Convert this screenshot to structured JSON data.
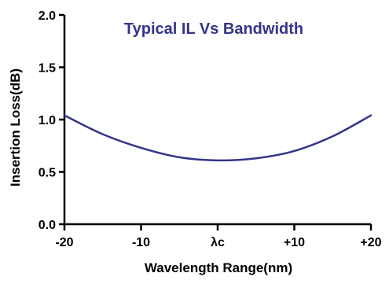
{
  "chart_data": {
    "type": "line",
    "title": "Typical IL Vs Bandwidth",
    "xlabel": "Wavelength Range(nm)",
    "ylabel": "Insertion Loss(dB)",
    "xlim": [
      -20,
      20
    ],
    "ylim": [
      0,
      2.0
    ],
    "x_ticks": [
      {
        "value": -20,
        "label": "-20"
      },
      {
        "value": -10,
        "label": "-10"
      },
      {
        "value": 0,
        "label": "λc"
      },
      {
        "value": 10,
        "label": "+10"
      },
      {
        "value": 20,
        "label": "+20"
      }
    ],
    "y_ticks": [
      {
        "value": 0,
        "label": "0.0"
      },
      {
        "value": 0.5,
        "label": "0.5"
      },
      {
        "value": 1.0,
        "label": "1.0"
      },
      {
        "value": 1.5,
        "label": "1.5"
      },
      {
        "value": 2.0,
        "label": "2.0"
      }
    ],
    "grid": false,
    "series": [
      {
        "color": "#34348a",
        "x": [
          -20,
          -15,
          -10,
          -5,
          0,
          5,
          10,
          15,
          20
        ],
        "y": [
          1.04,
          0.86,
          0.73,
          0.64,
          0.61,
          0.63,
          0.7,
          0.84,
          1.04
        ]
      }
    ],
    "colors": {
      "title": "#34348a",
      "axis": "#000000",
      "text": "#000000"
    }
  }
}
